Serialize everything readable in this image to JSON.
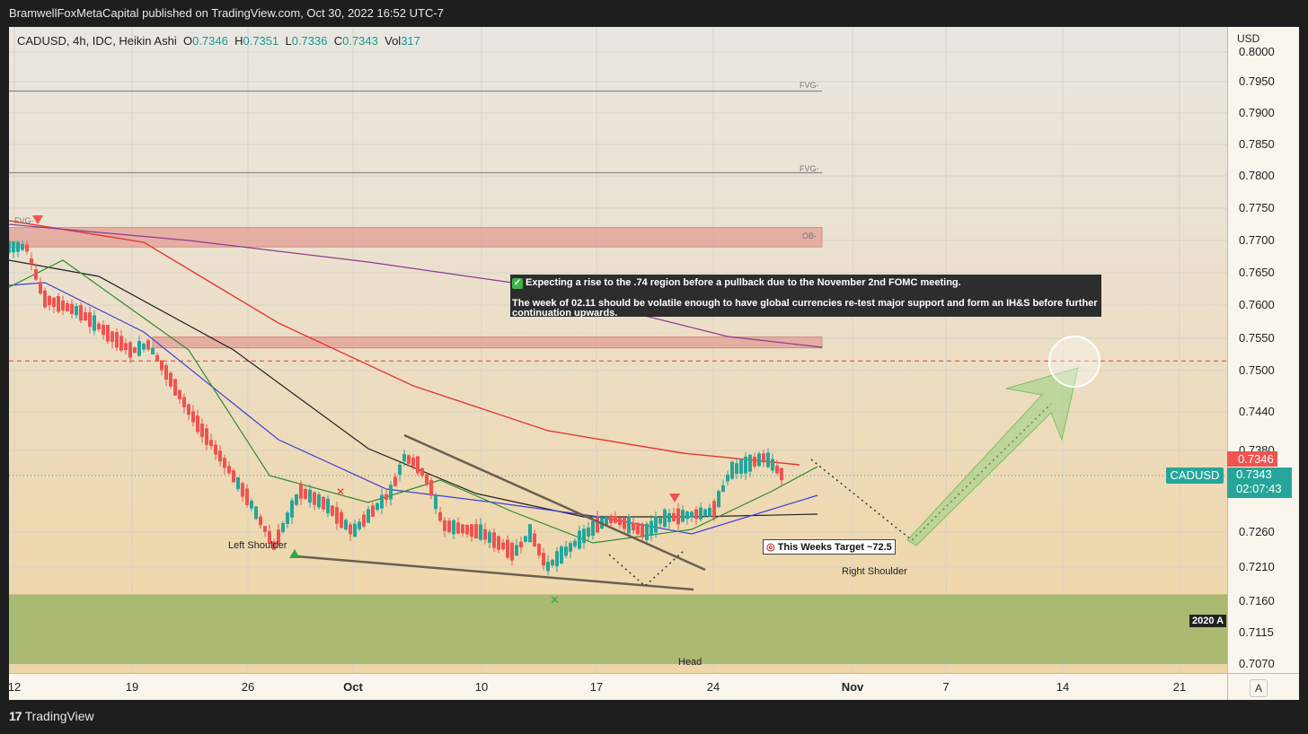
{
  "publisher_line": "BramwellFoxMetaCapital published on TradingView.com, Oct 30, 2022 16:52 UTC-7",
  "symbol_info": "CADUSD, 4h, IDC, Heikin Ashi",
  "ohlc": {
    "o_label": "O",
    "o": "0.7346",
    "h_label": "H",
    "h": "0.7351",
    "l_label": "L",
    "l": "0.7336",
    "c_label": "C",
    "c": "0.7343",
    "vol_label": "Vol",
    "vol": "317"
  },
  "currency": "USD",
  "y_ticks": [
    "0.8000",
    "0.7950",
    "0.7900",
    "0.7850",
    "0.7800",
    "0.7750",
    "0.7700",
    "0.7650",
    "0.7600",
    "0.7550",
    "0.7500",
    "0.7440",
    "0.7380",
    "0.7260",
    "0.7210",
    "0.7160",
    "0.7115",
    "0.7070"
  ],
  "x_ticks": [
    {
      "label": "12",
      "bold": false
    },
    {
      "label": "19",
      "bold": false
    },
    {
      "label": "26",
      "bold": false
    },
    {
      "label": "Oct",
      "bold": true
    },
    {
      "label": "10",
      "bold": false
    },
    {
      "label": "17",
      "bold": false
    },
    {
      "label": "24",
      "bold": false
    },
    {
      "label": "Nov",
      "bold": true
    },
    {
      "label": "7",
      "bold": false
    },
    {
      "label": "14",
      "bold": false
    },
    {
      "label": "21",
      "bold": false
    }
  ],
  "price_tags": {
    "red": "0.7346",
    "symbol": "CADUSD",
    "last": "0.7343",
    "countdown": "02:07:43"
  },
  "note": {
    "line1": "Expecting a rise to the .74 region before a pullback due to the November 2nd FOMC meeting.",
    "line2": "The week of 02.11 should be volatile enough to have global currencies re-test major support and form an IH&S before further continuation upwards."
  },
  "labels": {
    "left_shoulder": "Left Shoulder",
    "head": "Head",
    "right_shoulder": "Right Shoulder",
    "target": "This Weeks Target ~72.5",
    "year_tag": "2020 A",
    "fvg1": "FVG-",
    "fvg2": "FVG-",
    "fvg3": "FVG-",
    "ob": "OB-",
    "auto_scale": "A"
  },
  "footer": {
    "brand": "TradingView"
  },
  "colors": {
    "up": "#26a69a",
    "down": "#ef5350",
    "ma_red": "#e53935",
    "ma_black": "#222222",
    "ma_blue": "#3f3fd6",
    "ma_green": "#2e8b2e",
    "ma_purple": "#8e3a8e",
    "accent": "#1a9a8a"
  },
  "chart_data": {
    "type": "line",
    "title": "CADUSD, 4h, IDC, Heikin Ashi",
    "ylabel": "USD",
    "ylim": [
      0.705,
      0.801
    ],
    "x_range": [
      "Sep 12",
      "Nov 21"
    ],
    "series": [
      {
        "name": "CADUSD",
        "points": [
          [
            "Sep 12",
            0.769
          ],
          [
            "Sep 13",
            0.769
          ],
          [
            "Sep 14",
            0.761
          ],
          [
            "Sep 16",
            0.759
          ],
          [
            "Sep 19",
            0.753
          ],
          [
            "Sep 20",
            0.754
          ],
          [
            "Sep 21",
            0.75
          ],
          [
            "Sep 23",
            0.742
          ],
          [
            "Sep 26",
            0.731
          ],
          [
            "Sep 27",
            0.724
          ],
          [
            "Sep 28",
            0.732
          ],
          [
            "Sep 29",
            0.73
          ],
          [
            "Sep 30",
            0.726
          ],
          [
            "Oct 3",
            0.732
          ],
          [
            "Oct 4",
            0.737
          ],
          [
            "Oct 5",
            0.736
          ],
          [
            "Oct 6",
            0.733
          ],
          [
            "Oct 7",
            0.727
          ],
          [
            "Oct 10",
            0.726
          ],
          [
            "Oct 12",
            0.723
          ],
          [
            "Oct 13",
            0.726
          ],
          [
            "Oct 14",
            0.721
          ],
          [
            "Oct 17",
            0.727
          ],
          [
            "Oct 18",
            0.728
          ],
          [
            "Oct 20",
            0.726
          ],
          [
            "Oct 21",
            0.728
          ],
          [
            "Oct 24",
            0.729
          ],
          [
            "Oct 25",
            0.735
          ],
          [
            "Oct 27",
            0.737
          ],
          [
            "Oct 28",
            0.7343
          ]
        ]
      }
    ],
    "zones": [
      {
        "label": "FVG-",
        "price": 0.7935
      },
      {
        "label": "FVG-",
        "price": 0.7805
      },
      {
        "label": "OB-",
        "from": 0.769,
        "to": 0.772
      },
      {
        "label": "FVG-",
        "from": 0.7535,
        "to": 0.7552
      },
      {
        "label": "support",
        "from": 0.707,
        "to": 0.717
      }
    ],
    "hline": {
      "price": 0.7515,
      "style": "dashed"
    },
    "annotations": [
      "Left Shoulder",
      "Head",
      "Right Shoulder",
      "This Weeks Target ~72.5"
    ]
  }
}
